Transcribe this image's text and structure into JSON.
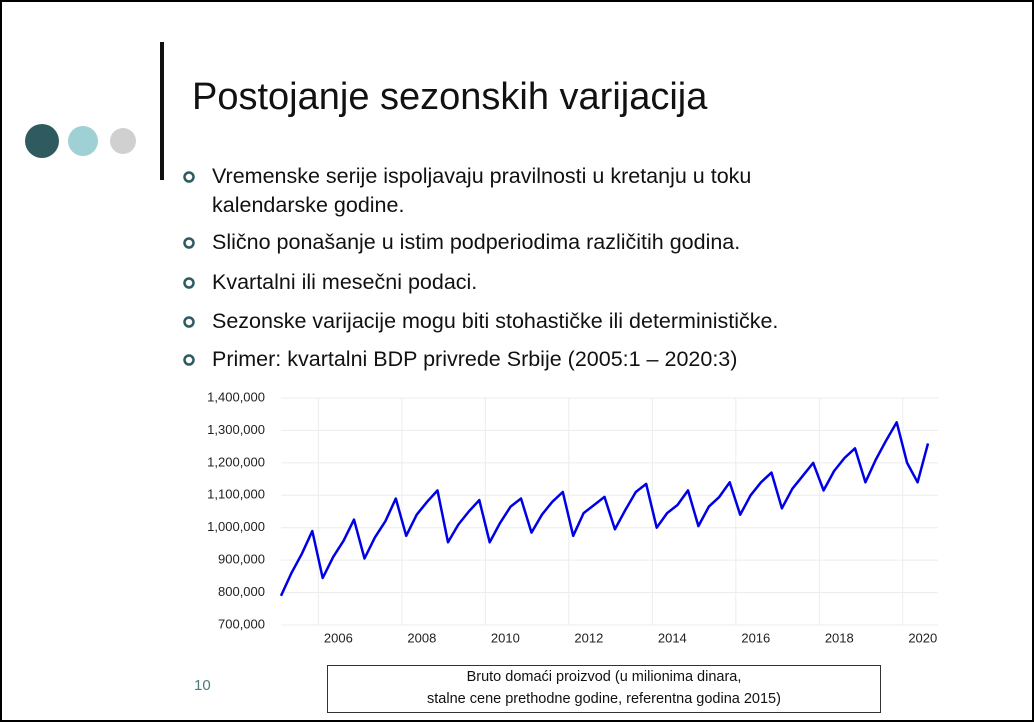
{
  "slide": {
    "title": "Postojanje sezonskih varijacija",
    "bullets": [
      "Vremenske serije ispoljavaju pravilnosti u kretanju u toku\nkalendarske godine.",
      "Slično ponašanje u istim podperiodima  različitih godina.",
      "Kvartalni ili mesečni podaci.",
      "Sezonske varijacije mogu biti stohastičke ili determinističke.",
      "Primer: kvartalni BDP privrede Srbije (2005:1 – 2020:3)"
    ],
    "page_number": "10"
  },
  "chart_data": {
    "type": "line",
    "x": [
      2005,
      2005.25,
      2005.5,
      2005.75,
      2006,
      2006.25,
      2006.5,
      2006.75,
      2007,
      2007.25,
      2007.5,
      2007.75,
      2008,
      2008.25,
      2008.5,
      2008.75,
      2009,
      2009.25,
      2009.5,
      2009.75,
      2010,
      2010.25,
      2010.5,
      2010.75,
      2011,
      2011.25,
      2011.5,
      2011.75,
      2012,
      2012.25,
      2012.5,
      2012.75,
      2013,
      2013.25,
      2013.5,
      2013.75,
      2014,
      2014.25,
      2014.5,
      2014.75,
      2015,
      2015.25,
      2015.5,
      2015.75,
      2016,
      2016.25,
      2016.5,
      2016.75,
      2017,
      2017.25,
      2017.5,
      2017.75,
      2018,
      2018.25,
      2018.5,
      2018.75,
      2019,
      2019.25,
      2019.5,
      2019.75,
      2020,
      2020.25,
      2020.5
    ],
    "series": [
      {
        "name": "Bruto domaći proizvod (u milionima dinara,\nstalne cene prethodne godine, referentna godina 2015)",
        "color": "#0000e6",
        "values": [
          790000,
          860000,
          920000,
          990000,
          845000,
          910000,
          960000,
          1025000,
          905000,
          970000,
          1020000,
          1090000,
          975000,
          1040000,
          1080000,
          1115000,
          955000,
          1010000,
          1050000,
          1085000,
          955000,
          1015000,
          1065000,
          1090000,
          985000,
          1040000,
          1080000,
          1110000,
          975000,
          1045000,
          1070000,
          1095000,
          995000,
          1055000,
          1110000,
          1135000,
          1000000,
          1045000,
          1070000,
          1115000,
          1005000,
          1065000,
          1095000,
          1140000,
          1040000,
          1100000,
          1140000,
          1170000,
          1060000,
          1120000,
          1160000,
          1200000,
          1115000,
          1175000,
          1215000,
          1245000,
          1140000,
          1210000,
          1270000,
          1325000,
          1200000,
          1140000,
          1260000
        ]
      }
    ],
    "xlim": [
      2005,
      2020.5
    ],
    "xticks": [
      {
        "value": 2006.375,
        "label": "2006"
      },
      {
        "value": 2008.375,
        "label": "2008"
      },
      {
        "value": 2010.375,
        "label": "2010"
      },
      {
        "value": 2012.375,
        "label": "2012"
      },
      {
        "value": 2014.375,
        "label": "2014"
      },
      {
        "value": 2016.375,
        "label": "2016"
      },
      {
        "value": 2018.375,
        "label": "2018"
      },
      {
        "value": 2020.375,
        "label": "2020"
      }
    ],
    "ylim": [
      700000,
      1400000
    ],
    "yticks": [
      {
        "value": 700000,
        "label": "700,000"
      },
      {
        "value": 800000,
        "label": "800,000"
      },
      {
        "value": 900000,
        "label": "900,000"
      },
      {
        "value": 1000000,
        "label": "1,000,000"
      },
      {
        "value": 1100000,
        "label": "1,100,000"
      },
      {
        "value": 1200000,
        "label": "1,200,000"
      },
      {
        "value": 1300000,
        "label": "1,300,000"
      },
      {
        "value": 1400000,
        "label": "1,400,000"
      }
    ],
    "grid": true
  }
}
